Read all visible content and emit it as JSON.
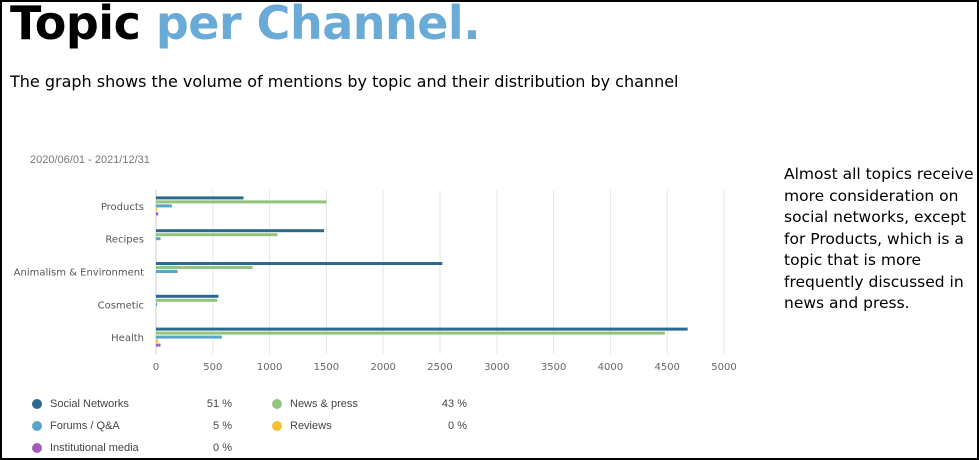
{
  "header": {
    "title_part1": "Topic",
    "title_part2": "per Channel.",
    "subtitle": "The graph shows the volume of mentions by topic and their distribution by channel"
  },
  "date_range": "2020/06/01 - 2021/12/31",
  "note": "Almost all topics receive more consideration on social networks, except for Products, which is a topic that is more frequently discussed in news and press.",
  "colors": {
    "social_networks": "#2b6a8f",
    "news_press": "#93c47d",
    "forums_qa": "#5ba3c7",
    "reviews": "#f1c232",
    "institutional_media": "#a05fb5",
    "grid": "#e6e6e6"
  },
  "legend": {
    "items": [
      {
        "name": "Social Networks",
        "percent": "51 %",
        "color": "#2b6a8f"
      },
      {
        "name": "News & press",
        "percent": "43 %",
        "color": "#93c47d"
      },
      {
        "name": "Forums / Q&A",
        "percent": "5 %",
        "color": "#5ba3c7"
      },
      {
        "name": "Reviews",
        "percent": "0 %",
        "color": "#f1c232"
      },
      {
        "name": "Institutional media",
        "percent": "0 %",
        "color": "#a05fb5"
      }
    ]
  },
  "chart_data": {
    "type": "bar",
    "orientation": "horizontal",
    "categories": [
      "Products",
      "Recipes",
      "Animalism & Environment",
      "Cosmetic",
      "Health"
    ],
    "series": [
      {
        "name": "Social Networks",
        "color": "#2b6a8f",
        "values": [
          770,
          1480,
          2520,
          550,
          4680
        ]
      },
      {
        "name": "News & press",
        "color": "#93c47d",
        "values": [
          1500,
          1070,
          850,
          540,
          4480
        ]
      },
      {
        "name": "Forums / Q&A",
        "color": "#5ba3c7",
        "values": [
          140,
          40,
          190,
          10,
          580
        ]
      },
      {
        "name": "Reviews",
        "color": "#f1c232",
        "values": [
          10,
          0,
          0,
          0,
          20
        ]
      },
      {
        "name": "Institutional media",
        "color": "#a05fb5",
        "values": [
          20,
          0,
          0,
          0,
          40
        ]
      }
    ],
    "xlim": [
      0,
      5000
    ],
    "x_ticks": [
      "0",
      "500",
      "1000",
      "1500",
      "2000",
      "2500",
      "3000",
      "3500",
      "4000",
      "4500",
      "5000"
    ],
    "grid": true,
    "legend_placement": "bottom"
  }
}
